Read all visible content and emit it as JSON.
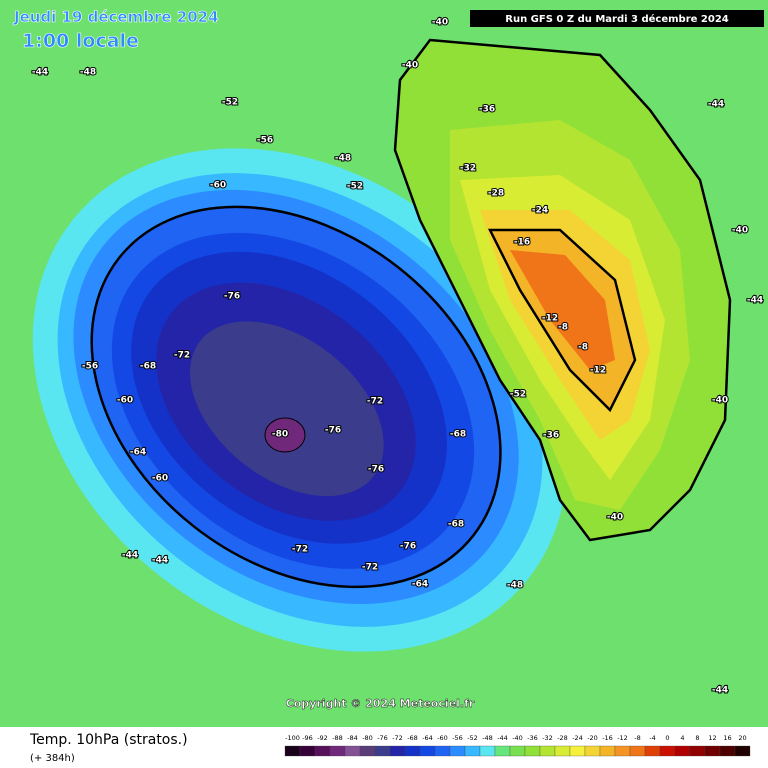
{
  "header": {
    "date": "Jeudi 19 décembre 2024",
    "local_time": "1:00 locale",
    "run": "Run GFS 0 Z du Mardi 3 décembre 2024",
    "copyright": "Copyright © 2024 Meteociel.fr"
  },
  "footer": {
    "title": "Temp. 10hPa (stratos.)",
    "lead": "(+ 384h)"
  },
  "scale": {
    "labels": [
      "-100",
      "-96",
      "-92",
      "-88",
      "-84",
      "-80",
      "-76",
      "-72",
      "-68",
      "-64",
      "-60",
      "-56",
      "-52",
      "-48",
      "-44",
      "-40",
      "-36",
      "-32",
      "-28",
      "-24",
      "-20",
      "-16",
      "-12",
      "-8",
      "-4",
      "0",
      "4",
      "8",
      "12",
      "16",
      "20"
    ],
    "colors": [
      "#1a0018",
      "#380038",
      "#56105a",
      "#70287a",
      "#845096",
      "#5a3c78",
      "#3c3c8c",
      "#2424a8",
      "#1432c8",
      "#1448e4",
      "#2064f4",
      "#2c8cff",
      "#38b8ff",
      "#5ae6f0",
      "#66e67a",
      "#78e050",
      "#90e038",
      "#b4e432",
      "#d8ec34",
      "#f4f03c",
      "#f4d434",
      "#f4b428",
      "#f49424",
      "#f07418",
      "#e04008",
      "#cc1000",
      "#b00000",
      "#900000",
      "#700000",
      "#4c0000",
      "#200000"
    ]
  },
  "contour_labels": [
    "-40",
    "-44",
    "-48",
    "-52",
    "-56",
    "-60",
    "-64",
    "-68",
    "-72",
    "-76",
    "-80",
    "-76",
    "-72",
    "-68",
    "-64",
    "-60",
    "-56",
    "-52",
    "-48",
    "-44",
    "-40",
    "-36",
    "-32",
    "-28",
    "-24",
    "-16",
    "-12",
    "-8",
    "-8",
    "-12",
    "-36",
    "-40",
    "-44",
    "-44",
    "-48",
    "-52",
    "-76",
    "-76",
    "-72",
    "-72",
    "-68",
    "-60",
    "-44",
    "-44",
    "-40",
    "-40"
  ]
}
